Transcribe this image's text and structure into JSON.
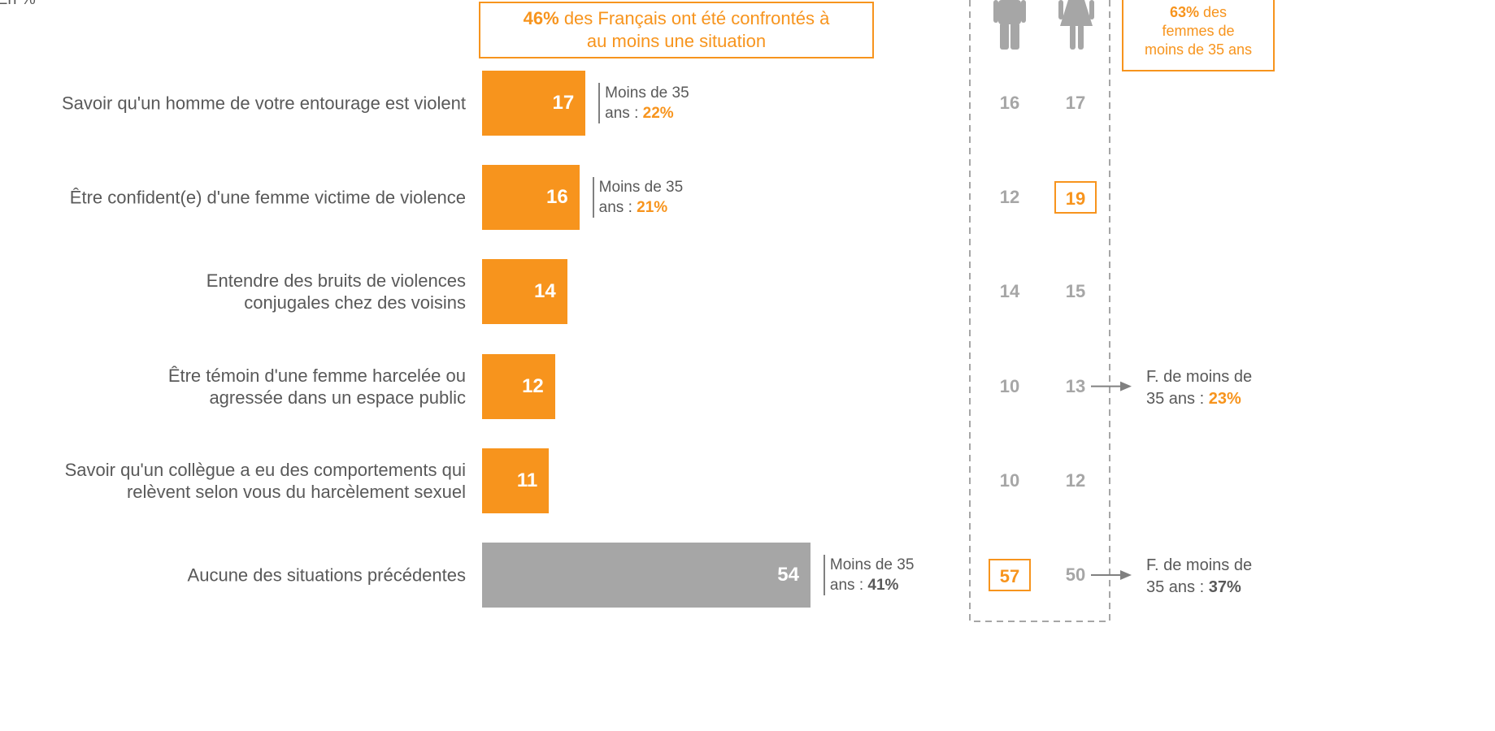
{
  "chart_data": {
    "type": "bar",
    "orientation": "horizontal",
    "subtitle": "En %",
    "callout": {
      "highlight": "46%",
      "text": "des Français ont été confrontés à\nau moins une situation"
    },
    "categories": [
      "Savoir qu'un homme de votre entourage est violent",
      "Être confident(e) d'une femme victime de violence",
      "Entendre des bruits de violences\nconjugales chez des voisins",
      "Être témoin d'une femme harcelée ou\nagressée dans un espace public",
      "Savoir qu'un collègue a eu des comportements qui\nrelèvent selon vous du harcèlement sexuel",
      "Aucune des situations précédentes"
    ],
    "values": [
      17,
      16,
      14,
      12,
      11,
      54
    ],
    "colors": [
      "#f7941d",
      "#f7941d",
      "#f7941d",
      "#f7941d",
      "#f7941d",
      "#a6a6a6"
    ],
    "xlim": [
      0,
      100
    ],
    "bar_notes": [
      {
        "text": "Moins de 35\nans :",
        "value": "22%",
        "color": "#f7941d"
      },
      {
        "text": "Moins de 35\nans :",
        "value": "21%",
        "color": "#f7941d"
      },
      null,
      null,
      null,
      {
        "text": "Moins de 35\nans :",
        "value": "41%",
        "color": "#595959"
      }
    ],
    "men": [
      16,
      12,
      14,
      10,
      10,
      57
    ],
    "women": [
      17,
      19,
      15,
      13,
      12,
      50
    ],
    "men_highlight": [
      false,
      false,
      false,
      false,
      false,
      true
    ],
    "women_highlight": [
      false,
      true,
      false,
      false,
      false,
      false
    ],
    "side_notes": [
      null,
      null,
      null,
      {
        "text": "F. de moins de\n35 ans :",
        "value": "23%",
        "color": "#f7941d"
      },
      null,
      {
        "text": "F. de moins de\n35 ans :",
        "value": "37%",
        "color": "#595959"
      }
    ],
    "side_callout": {
      "highlight": "63%",
      "text": "des\nfemmes de\nmoins de 35 ans"
    }
  }
}
